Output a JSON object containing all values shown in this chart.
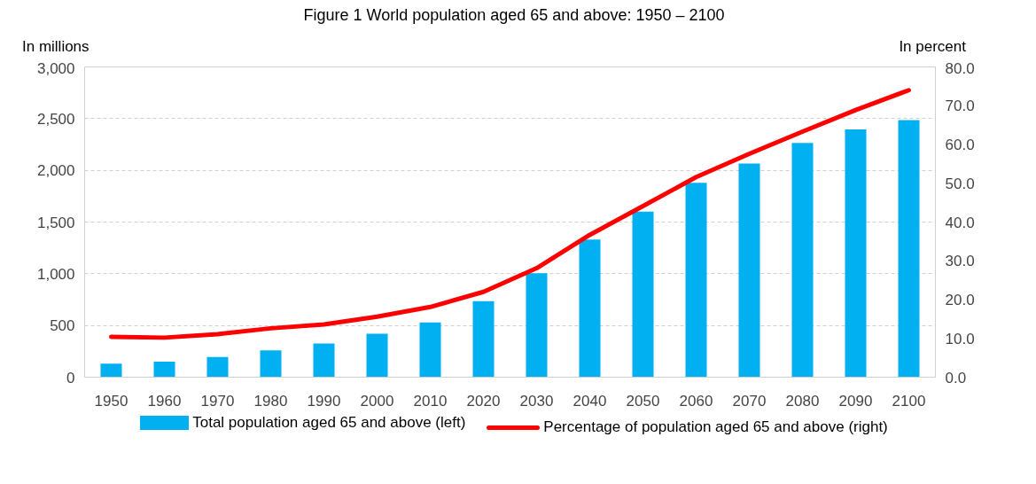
{
  "chart_data": {
    "type": "bar",
    "title": "Figure 1 World population aged 65 and above: 1950 – 2100",
    "ylabel": "In millions",
    "y2label": "In percent",
    "categories": [
      "1950",
      "1960",
      "1970",
      "1980",
      "1990",
      "2000",
      "2010",
      "2020",
      "2030",
      "2040",
      "2050",
      "2060",
      "2070",
      "2080",
      "2090",
      "2100"
    ],
    "series": [
      {
        "name": "Total population aged 65 and above (left)",
        "color": "#00b0f0",
        "values": [
          130,
          150,
          195,
          260,
          325,
          420,
          530,
          735,
          1005,
          1330,
          1600,
          1880,
          2065,
          2265,
          2395,
          2485
        ]
      },
      {
        "name": "Percentage of population aged 65 and above (right)",
        "type": "line",
        "axis": "y2",
        "color": "#ff0000",
        "values": [
          10.4,
          10.2,
          11.1,
          12.6,
          13.6,
          15.6,
          18.1,
          22.0,
          28.1,
          36.7,
          44.1,
          51.6,
          57.6,
          63.3,
          68.9,
          74.0
        ]
      }
    ],
    "ylim": [
      0,
      3000
    ],
    "yticks": [
      {
        "value": 0,
        "label": "0"
      },
      {
        "value": 500,
        "label": "500"
      },
      {
        "value": 1000,
        "label": "1,000"
      },
      {
        "value": 1500,
        "label": "1,500"
      },
      {
        "value": 2000,
        "label": "2,000"
      },
      {
        "value": 2500,
        "label": "2,500"
      },
      {
        "value": 3000,
        "label": "3,000"
      }
    ],
    "y2lim": [
      0,
      80
    ],
    "y2ticks": [
      {
        "value": 0,
        "label": "0.0"
      },
      {
        "value": 10,
        "label": "10.0"
      },
      {
        "value": 20,
        "label": "20.0"
      },
      {
        "value": 30,
        "label": "30.0"
      },
      {
        "value": 40,
        "label": "40.0"
      },
      {
        "value": 50,
        "label": "50.0"
      },
      {
        "value": 60,
        "label": "60.0"
      },
      {
        "value": 70,
        "label": "70.0"
      },
      {
        "value": 80,
        "label": "80.0"
      }
    ],
    "grid": "y",
    "legend": "bottom"
  }
}
